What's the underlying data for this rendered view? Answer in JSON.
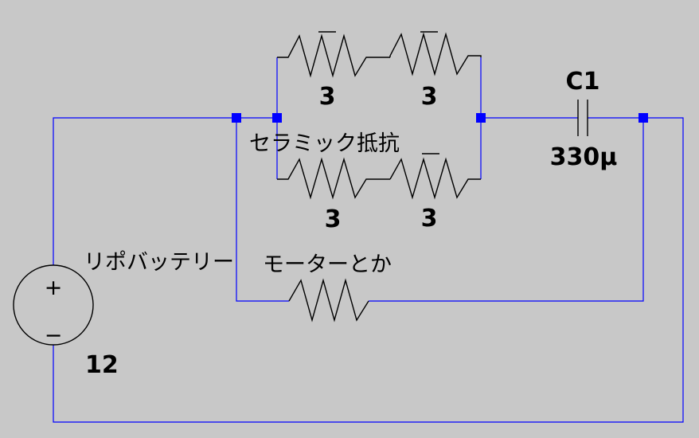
{
  "colors": {
    "background": "#c8c8c8",
    "wire": "#0000ff",
    "component": "#000000",
    "junction": "#0000ff"
  },
  "battery": {
    "label": "リポバッテリー",
    "value": "12",
    "plus_symbol": "+",
    "minus_symbol": "−"
  },
  "ceramic_resistors": {
    "label": "セラミック抵抗",
    "top_left_value": "3",
    "top_right_value": "3",
    "bottom_left_value": "3",
    "bottom_right_value": "3"
  },
  "capacitor": {
    "name": "C1",
    "value": "330µ"
  },
  "motor": {
    "label": "モーターとか"
  }
}
